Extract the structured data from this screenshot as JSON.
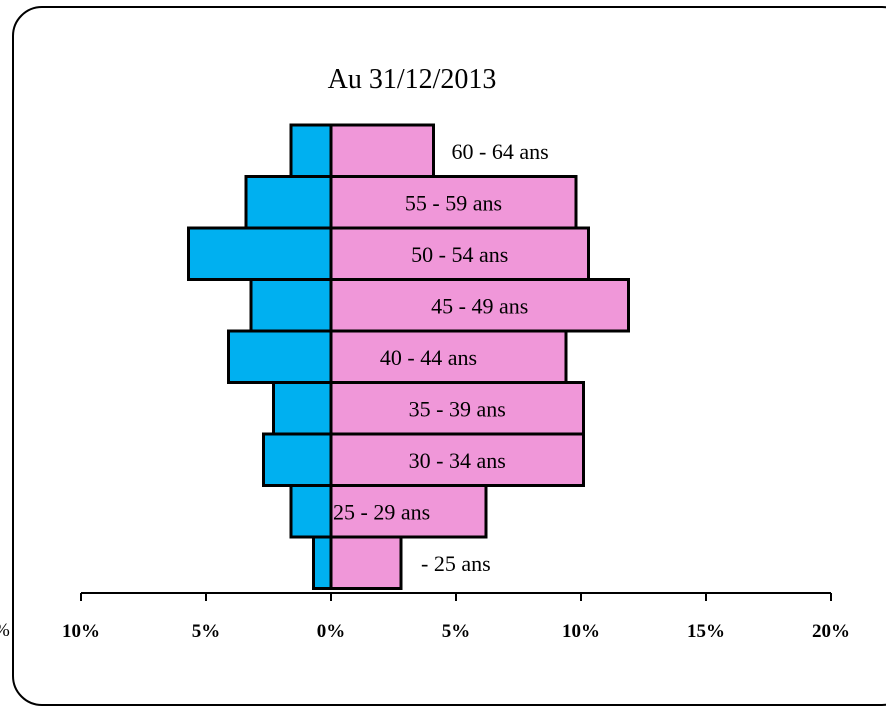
{
  "chart_data": {
    "type": "bar",
    "orientation": "horizontal",
    "title": "Au 31/12/2013",
    "categories": [
      "60 - 64 ans",
      "55 - 59 ans",
      "50 - 54 ans",
      "45 - 49 ans",
      "40 - 44 ans",
      "35 - 39 ans",
      "30 - 34 ans",
      "25 - 29 ans",
      "- 25 ans"
    ],
    "series": [
      {
        "color": "#00b0f0",
        "values": [
          1.6,
          3.4,
          5.7,
          3.2,
          4.1,
          2.3,
          2.7,
          1.6,
          0.7
        ]
      },
      {
        "color": "#f097d9",
        "values": [
          4.1,
          9.8,
          10.3,
          11.9,
          9.4,
          10.1,
          10.1,
          6.2,
          2.8
        ]
      }
    ],
    "xlim": [
      -10,
      20
    ],
    "x_ticks": [
      -10,
      -5,
      0,
      5,
      10,
      15,
      20
    ],
    "x_tick_labels": [
      "10%",
      "5%",
      "0%",
      "5%",
      "10%",
      "15%",
      "20%"
    ],
    "stray_label": "%"
  }
}
